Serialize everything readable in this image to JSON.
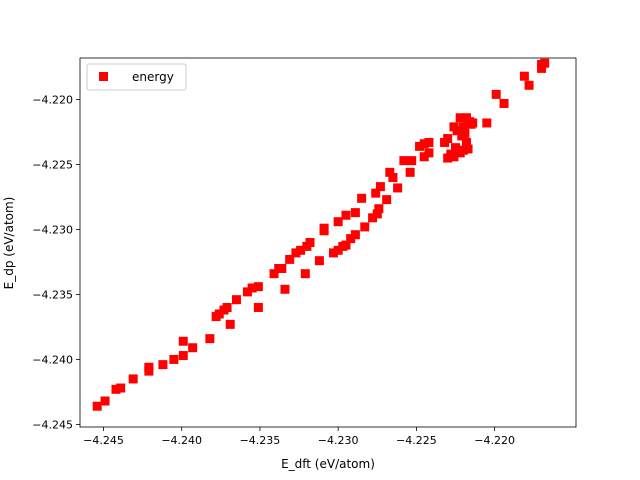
{
  "chart_data": {
    "type": "scatter",
    "title": "",
    "xlabel": "E_dft (eV/atom)",
    "ylabel": "E_dp (eV/atom)",
    "xlim": [
      -4.2465,
      -4.2148
    ],
    "ylim": [
      -4.2452,
      -4.2168
    ],
    "xticks": [
      -4.245,
      -4.24,
      -4.235,
      -4.23,
      -4.225,
      -4.22
    ],
    "xtick_labels": [
      "−4.245",
      "−4.240",
      "−4.235",
      "−4.230",
      "−4.225",
      "−4.220"
    ],
    "yticks": [
      -4.245,
      -4.24,
      -4.235,
      -4.23,
      -4.225,
      -4.22
    ],
    "ytick_labels": [
      "−4.245",
      "−4.240",
      "−4.235",
      "−4.230",
      "−4.225",
      "−4.220"
    ],
    "grid": false,
    "legend_position": "top-left",
    "series": [
      {
        "name": "energy",
        "marker": "square",
        "color": "#ff0000",
        "points": [
          [
            -4.2454,
            -4.2436
          ],
          [
            -4.2449,
            -4.2432
          ],
          [
            -4.2442,
            -4.2423
          ],
          [
            -4.2439,
            -4.2422
          ],
          [
            -4.2431,
            -4.2415
          ],
          [
            -4.2421,
            -4.2409
          ],
          [
            -4.2421,
            -4.2406
          ],
          [
            -4.2412,
            -4.2404
          ],
          [
            -4.2405,
            -4.24
          ],
          [
            -4.2399,
            -4.2397
          ],
          [
            -4.2399,
            -4.2386
          ],
          [
            -4.2393,
            -4.2391
          ],
          [
            -4.2382,
            -4.2384
          ],
          [
            -4.2378,
            -4.2367
          ],
          [
            -4.2376,
            -4.2365
          ],
          [
            -4.2373,
            -4.2362
          ],
          [
            -4.2371,
            -4.236
          ],
          [
            -4.2369,
            -4.2373
          ],
          [
            -4.2365,
            -4.2354
          ],
          [
            -4.2358,
            -4.2348
          ],
          [
            -4.2355,
            -4.2345
          ],
          [
            -4.2351,
            -4.2344
          ],
          [
            -4.2351,
            -4.236
          ],
          [
            -4.2341,
            -4.2334
          ],
          [
            -4.2338,
            -4.233
          ],
          [
            -4.2336,
            -4.233
          ],
          [
            -4.2334,
            -4.2346
          ],
          [
            -4.2331,
            -4.2323
          ],
          [
            -4.2327,
            -4.2318
          ],
          [
            -4.2324,
            -4.2316
          ],
          [
            -4.2321,
            -4.2334
          ],
          [
            -4.232,
            -4.2313
          ],
          [
            -4.2318,
            -4.231
          ],
          [
            -4.2312,
            -4.2324
          ],
          [
            -4.2309,
            -4.2301
          ],
          [
            -4.2309,
            -4.2299
          ],
          [
            -4.2303,
            -4.2318
          ],
          [
            -4.23,
            -4.2294
          ],
          [
            -4.23,
            -4.2316
          ],
          [
            -4.2297,
            -4.2313
          ],
          [
            -4.2295,
            -4.2289
          ],
          [
            -4.2295,
            -4.2312
          ],
          [
            -4.2292,
            -4.2307
          ],
          [
            -4.2289,
            -4.2304
          ],
          [
            -4.2289,
            -4.2287
          ],
          [
            -4.2285,
            -4.2276
          ],
          [
            -4.2283,
            -4.2298
          ],
          [
            -4.2278,
            -4.2291
          ],
          [
            -4.2276,
            -4.2272
          ],
          [
            -4.2275,
            -4.2288
          ],
          [
            -4.2274,
            -4.2284
          ],
          [
            -4.2273,
            -4.2267
          ],
          [
            -4.2269,
            -4.2277
          ],
          [
            -4.2267,
            -4.2256
          ],
          [
            -4.2265,
            -4.226
          ],
          [
            -4.2262,
            -4.2268
          ],
          [
            -4.2258,
            -4.2247
          ],
          [
            -4.2254,
            -4.2256
          ],
          [
            -4.2253,
            -4.2247
          ],
          [
            -4.2248,
            -4.2236
          ],
          [
            -4.2245,
            -4.2244
          ],
          [
            -4.2245,
            -4.2234
          ],
          [
            -4.2242,
            -4.2241
          ],
          [
            -4.2242,
            -4.2233
          ],
          [
            -4.2232,
            -4.2233
          ],
          [
            -4.223,
            -4.223
          ],
          [
            -4.223,
            -4.2245
          ],
          [
            -4.2228,
            -4.2242
          ],
          [
            -4.2226,
            -4.2221
          ],
          [
            -4.2226,
            -4.2244
          ],
          [
            -4.2225,
            -4.2237
          ],
          [
            -4.2224,
            -4.2224
          ],
          [
            -4.2222,
            -4.2214
          ],
          [
            -4.2222,
            -4.2241
          ],
          [
            -4.2221,
            -4.2228
          ],
          [
            -4.222,
            -4.2239
          ],
          [
            -4.222,
            -4.2221
          ],
          [
            -4.2219,
            -4.2226
          ],
          [
            -4.2218,
            -4.2214
          ],
          [
            -4.2218,
            -4.2233
          ],
          [
            -4.2217,
            -4.2238
          ],
          [
            -4.2216,
            -4.2217
          ],
          [
            -4.2215,
            -4.2219
          ],
          [
            -4.2214,
            -4.2218
          ],
          [
            -4.2205,
            -4.2218
          ],
          [
            -4.2199,
            -4.2196
          ],
          [
            -4.2194,
            -4.2203
          ],
          [
            -4.2181,
            -4.2182
          ],
          [
            -4.2178,
            -4.2189
          ],
          [
            -4.217,
            -4.2173
          ],
          [
            -4.217,
            -4.2176
          ],
          [
            -4.2168,
            -4.2172
          ]
        ]
      }
    ]
  }
}
